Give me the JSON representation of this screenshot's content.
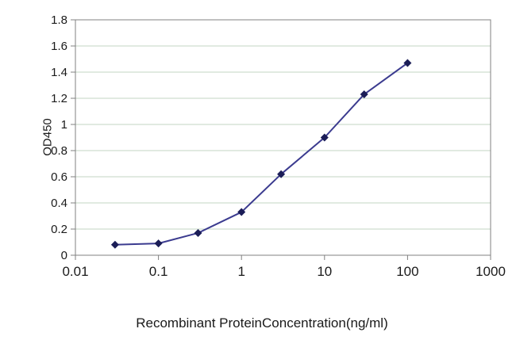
{
  "chart_data": {
    "type": "line",
    "title": "",
    "xlabel": "Recombinant ProteinConcentration(ng/ml)",
    "ylabel": "OD450",
    "x_scale": "log",
    "xlim": [
      0.01,
      1000
    ],
    "ylim": [
      0,
      1.8
    ],
    "x_ticks": [
      0.01,
      0.1,
      1,
      10,
      100,
      1000
    ],
    "x_tick_labels": [
      "0.01",
      "0.1",
      "1",
      "10",
      "100",
      "1000"
    ],
    "y_ticks": [
      0,
      0.2,
      0.4,
      0.6,
      0.8,
      1,
      1.2,
      1.4,
      1.6,
      1.8
    ],
    "y_tick_labels": [
      "0",
      "0.2",
      "0.4",
      "0.6",
      "0.8",
      "1",
      "1.2",
      "1.4",
      "1.6",
      "1.8"
    ],
    "grid": "horizontal",
    "legend": "none",
    "series": [
      {
        "name": "OD450",
        "marker": "diamond",
        "x": [
          0.03,
          0.1,
          0.3,
          1,
          3,
          10,
          30,
          100
        ],
        "y": [
          0.08,
          0.09,
          0.17,
          0.33,
          0.62,
          0.9,
          1.23,
          1.47
        ],
        "line_color": "#3b3b8f",
        "marker_color": "#1b1d57"
      }
    ],
    "colors": {
      "grid": "#c3d5c3",
      "axis": "#808080",
      "text": "#1a1a1a",
      "background": "#ffffff"
    }
  }
}
